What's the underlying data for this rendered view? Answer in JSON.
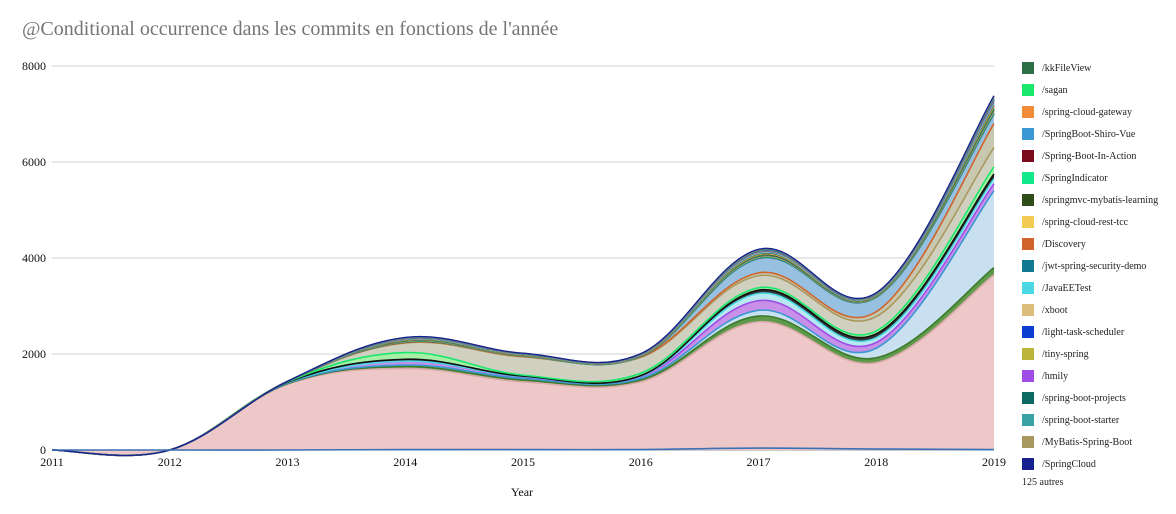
{
  "chart_data": {
    "type": "area",
    "title": "@Conditional occurrence dans les commits en fonctions de l'année",
    "xlabel": "Year",
    "ylabel": "",
    "x": [
      2011,
      2012,
      2013,
      2014,
      2015,
      2016,
      2017,
      2018,
      2019
    ],
    "ylim": [
      0,
      8000
    ],
    "yticks": [
      0,
      2000,
      4000,
      6000,
      8000
    ],
    "grid": true,
    "legend_position": "right",
    "legend_more": "125 autres",
    "base_series": {
      "color": "#3b6fb6",
      "values": [
        0,
        0,
        0,
        10,
        10,
        10,
        40,
        20,
        10
      ]
    },
    "series": [
      {
        "name": "/kkFileView",
        "color": "#2e7048",
        "values": [
          0,
          0,
          0,
          5,
          3,
          3,
          10,
          5,
          20
        ]
      },
      {
        "name": "/sagan",
        "color": "#19e86c",
        "values": [
          0,
          0,
          0,
          5,
          3,
          3,
          10,
          5,
          20
        ]
      },
      {
        "name": "/spring-cloud-gateway",
        "color": "#f28c38",
        "values": [
          0,
          0,
          0,
          5,
          3,
          3,
          10,
          5,
          20
        ]
      },
      {
        "name": "/SpringBoot-Shiro-Vue",
        "color": "#3b98d3",
        "values": [
          0,
          0,
          0,
          5,
          3,
          3,
          10,
          5,
          20
        ]
      },
      {
        "name": "/Spring-Boot-In-Action",
        "color": "#7a0a1e",
        "values": [
          0,
          0,
          0,
          5,
          3,
          3,
          10,
          5,
          20
        ]
      },
      {
        "name": "/SpringIndicator",
        "color": "#13e88a",
        "values": [
          0,
          0,
          0,
          5,
          3,
          3,
          10,
          5,
          20
        ]
      },
      {
        "name": "/springmvc-mybatis-learning",
        "color": "#2e4d18",
        "values": [
          0,
          0,
          0,
          5,
          3,
          3,
          10,
          5,
          20
        ]
      },
      {
        "name": "/spring-cloud-rest-tcc",
        "color": "#f2cb52",
        "values": [
          0,
          0,
          0,
          5,
          3,
          3,
          10,
          5,
          20
        ]
      },
      {
        "name": "/Discovery",
        "color": "#d0642a",
        "values": [
          0,
          0,
          0,
          5,
          3,
          3,
          10,
          5,
          20
        ]
      },
      {
        "name": "/jwt-spring-security-demo",
        "color": "#117a93",
        "values": [
          0,
          0,
          0,
          5,
          3,
          3,
          10,
          5,
          20
        ]
      },
      {
        "name": "/JavaEETest",
        "color": "#4ad9e4",
        "values": [
          0,
          0,
          0,
          5,
          3,
          3,
          10,
          5,
          20
        ]
      },
      {
        "name": "/xboot",
        "color": "#ddbd7a",
        "values": [
          0,
          0,
          0,
          5,
          3,
          3,
          10,
          5,
          20
        ]
      },
      {
        "name": "/light-task-scheduler",
        "color": "#0b3ed0",
        "values": [
          0,
          0,
          0,
          5,
          3,
          3,
          10,
          5,
          20
        ]
      },
      {
        "name": "/tiny-spring",
        "color": "#bdb53a",
        "values": [
          0,
          0,
          0,
          5,
          3,
          3,
          10,
          5,
          20
        ]
      },
      {
        "name": "/hmily",
        "color": "#a04ce8",
        "values": [
          0,
          0,
          0,
          5,
          3,
          3,
          10,
          5,
          20
        ]
      },
      {
        "name": "/spring-boot-projects",
        "color": "#0b6b64",
        "values": [
          0,
          0,
          0,
          5,
          3,
          3,
          10,
          5,
          20
        ]
      },
      {
        "name": "/spring-boot-starter",
        "color": "#3aa3a5",
        "values": [
          0,
          0,
          0,
          5,
          3,
          3,
          10,
          5,
          20
        ]
      },
      {
        "name": "/MyBatis-Spring-Boot",
        "color": "#a9985e",
        "values": [
          0,
          0,
          0,
          5,
          3,
          3,
          10,
          5,
          20
        ]
      },
      {
        "name": "/SpringCloud",
        "color": "#15228f",
        "values": [
          0,
          0,
          0,
          5,
          3,
          3,
          10,
          5,
          20
        ]
      }
    ],
    "bands": [
      {
        "fill": "#eec8c8",
        "line": "#d9a8a8",
        "values": [
          0,
          0,
          1370,
          1700,
          1420,
          1420,
          2670,
          1820,
          3650
        ]
      },
      {
        "fill": "#5e9a4a",
        "line": "#3c7a2c",
        "values": [
          0,
          0,
          10,
          40,
          40,
          40,
          120,
          100,
          150
        ]
      },
      {
        "fill": "#c8e0f0",
        "line": "#3b98d3",
        "values": [
          0,
          0,
          10,
          30,
          30,
          30,
          120,
          200,
          1600
        ]
      },
      {
        "fill": "#c890e8",
        "line": "#a04ce8",
        "values": [
          0,
          0,
          10,
          80,
          30,
          40,
          200,
          120,
          150
        ]
      },
      {
        "fill": "#b8e8f0",
        "line": "#4ad9e4",
        "values": [
          0,
          0,
          0,
          0,
          10,
          10,
          150,
          100,
          100
        ]
      },
      {
        "fill": "#333333",
        "line": "#111111",
        "values": [
          0,
          0,
          10,
          40,
          10,
          10,
          70,
          80,
          100
        ]
      },
      {
        "fill": "#a8f0a8",
        "line": "#19e86c",
        "values": [
          0,
          0,
          10,
          140,
          20,
          50,
          50,
          60,
          150
        ]
      },
      {
        "fill": "#d0d0c0",
        "line": "#a9985e",
        "values": [
          0,
          0,
          10,
          200,
          380,
          330,
          250,
          300,
          400
        ]
      },
      {
        "fill": "#c8c8b0",
        "line": "#d0642a",
        "values": [
          0,
          0,
          0,
          10,
          10,
          10,
          60,
          100,
          500
        ]
      },
      {
        "fill": "#98c0e0",
        "line": "#2f6f9f",
        "values": [
          0,
          0,
          0,
          10,
          10,
          10,
          300,
          300,
          200
        ]
      }
    ]
  }
}
